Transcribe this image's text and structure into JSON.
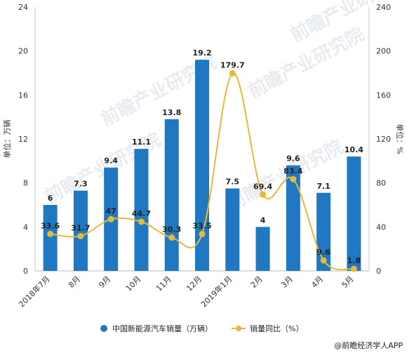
{
  "chart_data": {
    "type": "bar",
    "categories": [
      "2018年7月",
      "8月",
      "9月",
      "10月",
      "11月",
      "12月",
      "2019年1月",
      "2月",
      "3月",
      "4月",
      "5月"
    ],
    "series": [
      {
        "name": "中国新能源汽车销量（万辆）",
        "type": "bar",
        "axis": "left",
        "values": [
          6,
          7.3,
          9.4,
          11.1,
          13.8,
          19.2,
          7.5,
          4,
          9.6,
          7.1,
          10.4
        ],
        "labels": [
          "6",
          "7.3",
          "9.4",
          "11.1",
          "13.8",
          "19.2",
          "7.5",
          "4",
          "9.6",
          "7.1",
          "10.4"
        ]
      },
      {
        "name": "销量同比（%）",
        "type": "line",
        "axis": "right",
        "values": [
          33.6,
          31.7,
          47,
          44.7,
          30.3,
          33.5,
          179.7,
          69.4,
          83.4,
          9.6,
          1.8
        ],
        "labels": [
          "33.6",
          "31.7",
          "47",
          "44.7",
          "30.3",
          "33.5",
          "179.7",
          "69.4",
          "83.4",
          "9.6",
          "1.8"
        ]
      }
    ],
    "ylabel_left": "单位：万辆",
    "ylabel_right": "单位：%",
    "ylim_left": [
      0,
      24
    ],
    "ylim_right": [
      0,
      240
    ],
    "yticks_left": [
      "0",
      "4",
      "8",
      "12",
      "16",
      "20",
      "24"
    ],
    "yticks_right": [
      "0",
      "40",
      "80",
      "120",
      "160",
      "200",
      "240"
    ],
    "grid": false,
    "legend_position": "bottom",
    "colors": {
      "bar": "#1f78c1",
      "line": "#e8b83a"
    }
  },
  "credit": "@前瞻经济学人APP",
  "watermark": "前瞻产业研究院"
}
